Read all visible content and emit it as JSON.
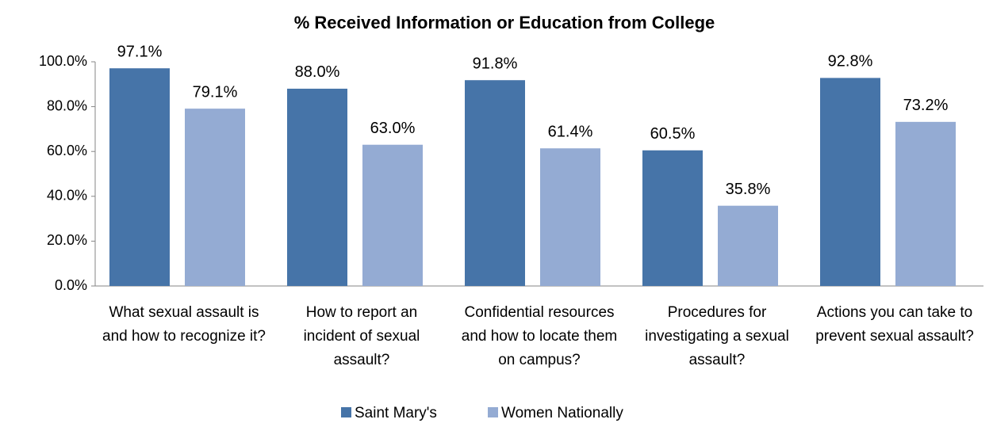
{
  "chart_data": {
    "type": "bar",
    "title": "% Received Information or Education from College",
    "categories": [
      "What sexual assault is and how to recognize it?",
      "How to report an incident of sexual assault?",
      "Confidential resources and how to locate them on campus?",
      "Procedures for investigating a sexual assault?",
      "Actions you can take to prevent sexual assault?"
    ],
    "series": [
      {
        "name": "Saint Mary's",
        "color": "#4674a8",
        "values": [
          97.1,
          88.0,
          91.8,
          60.5,
          92.8
        ],
        "value_labels": [
          "97.1%",
          "88.0%",
          "91.8%",
          "60.5%",
          "92.8%"
        ]
      },
      {
        "name": "Women Nationally",
        "color": "#94abd3",
        "values": [
          79.1,
          63.0,
          61.4,
          35.8,
          73.2
        ],
        "value_labels": [
          "79.1%",
          "63.0%",
          "61.4%",
          "35.8%",
          "73.2%"
        ]
      }
    ],
    "ylim": [
      0,
      100
    ],
    "yticks": [
      {
        "value": 0,
        "label": "0.0%"
      },
      {
        "value": 20,
        "label": "20.0%"
      },
      {
        "value": 40,
        "label": "40.0%"
      },
      {
        "value": 60,
        "label": "60.0%"
      },
      {
        "value": 80,
        "label": "80.0%"
      },
      {
        "value": 100,
        "label": "100.0%"
      }
    ],
    "grid": false,
    "legend": "bottom"
  }
}
